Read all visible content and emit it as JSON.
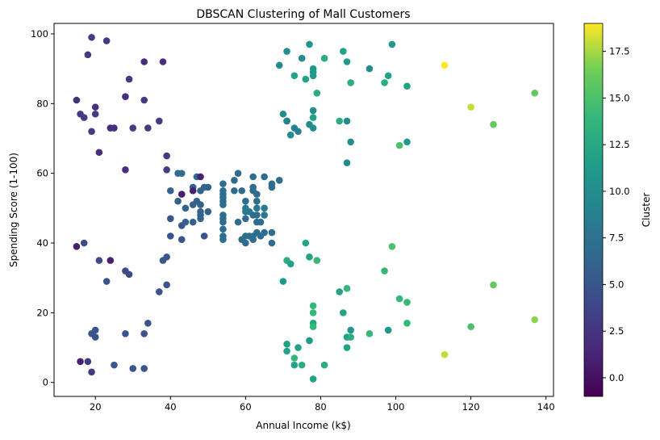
{
  "chart_data": {
    "type": "scatter",
    "title": "DBSCAN Clustering of Mall Customers",
    "xlabel": "Annual Income (k$)",
    "ylabel": "Spending Score (1-100)",
    "xlim": [
      9,
      142
    ],
    "ylim": [
      -4,
      103
    ],
    "xticks": [
      20,
      40,
      60,
      80,
      100,
      120,
      140
    ],
    "yticks": [
      0,
      20,
      40,
      60,
      80,
      100
    ],
    "grid": false,
    "colorbar": {
      "label": "Cluster",
      "colormap": "viridis",
      "range": [
        -1,
        19
      ],
      "ticks": [
        0.0,
        2.5,
        5.0,
        7.5,
        10.0,
        12.5,
        15.0,
        17.5
      ],
      "tick_labels": [
        "0.0",
        "2.5",
        "5.0",
        "7.5",
        "10.0",
        "12.5",
        "15.0",
        "17.5"
      ]
    },
    "points": [
      {
        "x": 19,
        "y": 99,
        "c": 3
      },
      {
        "x": 23,
        "y": 98,
        "c": 3
      },
      {
        "x": 18,
        "y": 94,
        "c": 3
      },
      {
        "x": 33,
        "y": 92,
        "c": 2
      },
      {
        "x": 38,
        "y": 92,
        "c": 2
      },
      {
        "x": 29,
        "y": 87,
        "c": 3
      },
      {
        "x": 15,
        "y": 81,
        "c": 2
      },
      {
        "x": 33,
        "y": 81,
        "c": 3
      },
      {
        "x": 28,
        "y": 82,
        "c": 2
      },
      {
        "x": 20,
        "y": 79,
        "c": 2
      },
      {
        "x": 16,
        "y": 77,
        "c": 3
      },
      {
        "x": 17,
        "y": 76,
        "c": 3
      },
      {
        "x": 20,
        "y": 77,
        "c": 3
      },
      {
        "x": 37,
        "y": 75,
        "c": 3
      },
      {
        "x": 19,
        "y": 72,
        "c": 3
      },
      {
        "x": 24,
        "y": 73,
        "c": 2
      },
      {
        "x": 25,
        "y": 73,
        "c": 2
      },
      {
        "x": 30,
        "y": 73,
        "c": 3
      },
      {
        "x": 34,
        "y": 73,
        "c": 3
      },
      {
        "x": 21,
        "y": 66,
        "c": 2
      },
      {
        "x": 28,
        "y": 61,
        "c": 2
      },
      {
        "x": 39,
        "y": 65,
        "c": 3
      },
      {
        "x": 39,
        "y": 61,
        "c": 3
      },
      {
        "x": 15,
        "y": 39,
        "c": 1
      },
      {
        "x": 17,
        "y": 40,
        "c": 4
      },
      {
        "x": 21,
        "y": 35,
        "c": 4
      },
      {
        "x": 24,
        "y": 35,
        "c": 1
      },
      {
        "x": 28,
        "y": 32,
        "c": 4
      },
      {
        "x": 29,
        "y": 31,
        "c": 4
      },
      {
        "x": 23,
        "y": 29,
        "c": 5
      },
      {
        "x": 37,
        "y": 26,
        "c": 5
      },
      {
        "x": 38,
        "y": 35,
        "c": 5
      },
      {
        "x": 39,
        "y": 36,
        "c": 5
      },
      {
        "x": 39,
        "y": 28,
        "c": 5
      },
      {
        "x": 34,
        "y": 17,
        "c": 5
      },
      {
        "x": 19,
        "y": 14,
        "c": 5
      },
      {
        "x": 20,
        "y": 15,
        "c": 5
      },
      {
        "x": 20,
        "y": 13,
        "c": 5
      },
      {
        "x": 28,
        "y": 14,
        "c": 5
      },
      {
        "x": 33,
        "y": 14,
        "c": 5
      },
      {
        "x": 16,
        "y": 6,
        "c": 1
      },
      {
        "x": 18,
        "y": 6,
        "c": 3
      },
      {
        "x": 19,
        "y": 3,
        "c": 3
      },
      {
        "x": 25,
        "y": 5,
        "c": 5
      },
      {
        "x": 30,
        "y": 4,
        "c": 5
      },
      {
        "x": 33,
        "y": 4,
        "c": 5
      },
      {
        "x": 40,
        "y": 47,
        "c": 5
      },
      {
        "x": 40,
        "y": 42,
        "c": 5
      },
      {
        "x": 40,
        "y": 55,
        "c": 6
      },
      {
        "x": 42,
        "y": 52,
        "c": 6
      },
      {
        "x": 42,
        "y": 60,
        "c": 7
      },
      {
        "x": 43,
        "y": 60,
        "c": 7
      },
      {
        "x": 43,
        "y": 54,
        "c": 1
      },
      {
        "x": 43,
        "y": 45,
        "c": 5
      },
      {
        "x": 43,
        "y": 41,
        "c": 5
      },
      {
        "x": 44,
        "y": 46,
        "c": 6
      },
      {
        "x": 44,
        "y": 50,
        "c": 6
      },
      {
        "x": 46,
        "y": 51,
        "c": 6
      },
      {
        "x": 46,
        "y": 46,
        "c": 6
      },
      {
        "x": 46,
        "y": 56,
        "c": 6
      },
      {
        "x": 46,
        "y": 55,
        "c": 1
      },
      {
        "x": 47,
        "y": 52,
        "c": 6
      },
      {
        "x": 47,
        "y": 59,
        "c": 7
      },
      {
        "x": 48,
        "y": 59,
        "c": 1
      },
      {
        "x": 48,
        "y": 51,
        "c": 6
      },
      {
        "x": 48,
        "y": 47,
        "c": 6
      },
      {
        "x": 48,
        "y": 48,
        "c": 6
      },
      {
        "x": 48,
        "y": 49,
        "c": 6
      },
      {
        "x": 48,
        "y": 55,
        "c": 6
      },
      {
        "x": 49,
        "y": 56,
        "c": 6
      },
      {
        "x": 49,
        "y": 42,
        "c": 5
      },
      {
        "x": 50,
        "y": 49,
        "c": 6
      },
      {
        "x": 50,
        "y": 56,
        "c": 6
      },
      {
        "x": 54,
        "y": 47,
        "c": 7
      },
      {
        "x": 54,
        "y": 54,
        "c": 7
      },
      {
        "x": 54,
        "y": 53,
        "c": 7
      },
      {
        "x": 54,
        "y": 48,
        "c": 7
      },
      {
        "x": 54,
        "y": 52,
        "c": 7
      },
      {
        "x": 54,
        "y": 42,
        "c": 7
      },
      {
        "x": 54,
        "y": 51,
        "c": 7
      },
      {
        "x": 54,
        "y": 55,
        "c": 7
      },
      {
        "x": 54,
        "y": 41,
        "c": 7
      },
      {
        "x": 54,
        "y": 44,
        "c": 7
      },
      {
        "x": 54,
        "y": 57,
        "c": 7
      },
      {
        "x": 54,
        "y": 46,
        "c": 7
      },
      {
        "x": 57,
        "y": 58,
        "c": 7
      },
      {
        "x": 57,
        "y": 55,
        "c": 7
      },
      {
        "x": 58,
        "y": 60,
        "c": 7
      },
      {
        "x": 58,
        "y": 46,
        "c": 7
      },
      {
        "x": 59,
        "y": 55,
        "c": 7
      },
      {
        "x": 59,
        "y": 41,
        "c": 7
      },
      {
        "x": 60,
        "y": 49,
        "c": 8
      },
      {
        "x": 60,
        "y": 40,
        "c": 7
      },
      {
        "x": 60,
        "y": 42,
        "c": 7
      },
      {
        "x": 60,
        "y": 52,
        "c": 7
      },
      {
        "x": 60,
        "y": 47,
        "c": 7
      },
      {
        "x": 60,
        "y": 50,
        "c": 8
      },
      {
        "x": 61,
        "y": 42,
        "c": 7
      },
      {
        "x": 61,
        "y": 49,
        "c": 8
      },
      {
        "x": 62,
        "y": 41,
        "c": 7
      },
      {
        "x": 62,
        "y": 48,
        "c": 7
      },
      {
        "x": 62,
        "y": 59,
        "c": 7
      },
      {
        "x": 62,
        "y": 55,
        "c": 7
      },
      {
        "x": 62,
        "y": 56,
        "c": 7
      },
      {
        "x": 62,
        "y": 42,
        "c": 7
      },
      {
        "x": 63,
        "y": 50,
        "c": 8
      },
      {
        "x": 63,
        "y": 46,
        "c": 7
      },
      {
        "x": 63,
        "y": 43,
        "c": 7
      },
      {
        "x": 63,
        "y": 48,
        "c": 7
      },
      {
        "x": 63,
        "y": 52,
        "c": 7
      },
      {
        "x": 63,
        "y": 54,
        "c": 7
      },
      {
        "x": 64,
        "y": 42,
        "c": 7
      },
      {
        "x": 64,
        "y": 46,
        "c": 7
      },
      {
        "x": 65,
        "y": 48,
        "c": 8
      },
      {
        "x": 65,
        "y": 50,
        "c": 8
      },
      {
        "x": 65,
        "y": 43,
        "c": 7
      },
      {
        "x": 65,
        "y": 59,
        "c": 7
      },
      {
        "x": 67,
        "y": 43,
        "c": 7
      },
      {
        "x": 67,
        "y": 57,
        "c": 7
      },
      {
        "x": 67,
        "y": 56,
        "c": 7
      },
      {
        "x": 67,
        "y": 40,
        "c": 7
      },
      {
        "x": 69,
        "y": 58,
        "c": 7
      },
      {
        "x": 69,
        "y": 91,
        "c": 10
      },
      {
        "x": 70,
        "y": 77,
        "c": 10
      },
      {
        "x": 71,
        "y": 95,
        "c": 10
      },
      {
        "x": 71,
        "y": 75,
        "c": 9
      },
      {
        "x": 71,
        "y": 75,
        "c": 9
      },
      {
        "x": 72,
        "y": 71,
        "c": 10
      },
      {
        "x": 73,
        "y": 88,
        "c": 12
      },
      {
        "x": 73,
        "y": 73,
        "c": 9
      },
      {
        "x": 74,
        "y": 72,
        "c": 9
      },
      {
        "x": 75,
        "y": 93,
        "c": 10
      },
      {
        "x": 76,
        "y": 87,
        "c": 12
      },
      {
        "x": 77,
        "y": 97,
        "c": 11
      },
      {
        "x": 77,
        "y": 74,
        "c": 10
      },
      {
        "x": 78,
        "y": 90,
        "c": 11
      },
      {
        "x": 78,
        "y": 88,
        "c": 11
      },
      {
        "x": 78,
        "y": 76,
        "c": 12
      },
      {
        "x": 78,
        "y": 89,
        "c": 11
      },
      {
        "x": 78,
        "y": 78,
        "c": 10
      },
      {
        "x": 78,
        "y": 73,
        "c": 10
      },
      {
        "x": 79,
        "y": 83,
        "c": 13
      },
      {
        "x": 81,
        "y": 93,
        "c": 13
      },
      {
        "x": 85,
        "y": 75,
        "c": 13
      },
      {
        "x": 86,
        "y": 95,
        "c": 12
      },
      {
        "x": 87,
        "y": 63,
        "c": 10
      },
      {
        "x": 87,
        "y": 75,
        "c": 10
      },
      {
        "x": 87,
        "y": 92,
        "c": 11
      },
      {
        "x": 88,
        "y": 86,
        "c": 13
      },
      {
        "x": 88,
        "y": 69,
        "c": 10
      },
      {
        "x": 93,
        "y": 90,
        "c": 10
      },
      {
        "x": 97,
        "y": 86,
        "c": 13
      },
      {
        "x": 98,
        "y": 88,
        "c": 12
      },
      {
        "x": 99,
        "y": 97,
        "c": 11
      },
      {
        "x": 101,
        "y": 68,
        "c": 15
      },
      {
        "x": 103,
        "y": 85,
        "c": 12
      },
      {
        "x": 103,
        "y": 69,
        "c": 11
      },
      {
        "x": 113,
        "y": 91,
        "c": 19
      },
      {
        "x": 120,
        "y": 79,
        "c": 18
      },
      {
        "x": 126,
        "y": 74,
        "c": 16
      },
      {
        "x": 137,
        "y": 83,
        "c": 16
      },
      {
        "x": 70,
        "y": 29,
        "c": 11
      },
      {
        "x": 71,
        "y": 35,
        "c": 13
      },
      {
        "x": 71,
        "y": 11,
        "c": 12
      },
      {
        "x": 71,
        "y": 9,
        "c": 12
      },
      {
        "x": 72,
        "y": 34,
        "c": 12
      },
      {
        "x": 73,
        "y": 5,
        "c": 12
      },
      {
        "x": 73,
        "y": 7,
        "c": 14
      },
      {
        "x": 74,
        "y": 10,
        "c": 12
      },
      {
        "x": 75,
        "y": 5,
        "c": 13
      },
      {
        "x": 76,
        "y": 40,
        "c": 12
      },
      {
        "x": 77,
        "y": 36,
        "c": 12
      },
      {
        "x": 77,
        "y": 12,
        "c": 11
      },
      {
        "x": 78,
        "y": 22,
        "c": 14
      },
      {
        "x": 78,
        "y": 17,
        "c": 12
      },
      {
        "x": 78,
        "y": 20,
        "c": 14
      },
      {
        "x": 78,
        "y": 16,
        "c": 14
      },
      {
        "x": 78,
        "y": 1,
        "c": 12
      },
      {
        "x": 79,
        "y": 35,
        "c": 14
      },
      {
        "x": 81,
        "y": 5,
        "c": 13
      },
      {
        "x": 85,
        "y": 26,
        "c": 12
      },
      {
        "x": 86,
        "y": 20,
        "c": 12
      },
      {
        "x": 87,
        "y": 27,
        "c": 14
      },
      {
        "x": 87,
        "y": 13,
        "c": 12
      },
      {
        "x": 87,
        "y": 10,
        "c": 12
      },
      {
        "x": 88,
        "y": 13,
        "c": 13
      },
      {
        "x": 88,
        "y": 15,
        "c": 11
      },
      {
        "x": 93,
        "y": 14,
        "c": 14
      },
      {
        "x": 97,
        "y": 32,
        "c": 14
      },
      {
        "x": 98,
        "y": 15,
        "c": 11
      },
      {
        "x": 99,
        "y": 39,
        "c": 15
      },
      {
        "x": 101,
        "y": 24,
        "c": 14
      },
      {
        "x": 103,
        "y": 17,
        "c": 14
      },
      {
        "x": 103,
        "y": 23,
        "c": 14
      },
      {
        "x": 113,
        "y": 8,
        "c": 18
      },
      {
        "x": 120,
        "y": 16,
        "c": 15
      },
      {
        "x": 126,
        "y": 28,
        "c": 16
      },
      {
        "x": 137,
        "y": 18,
        "c": 17
      }
    ]
  }
}
